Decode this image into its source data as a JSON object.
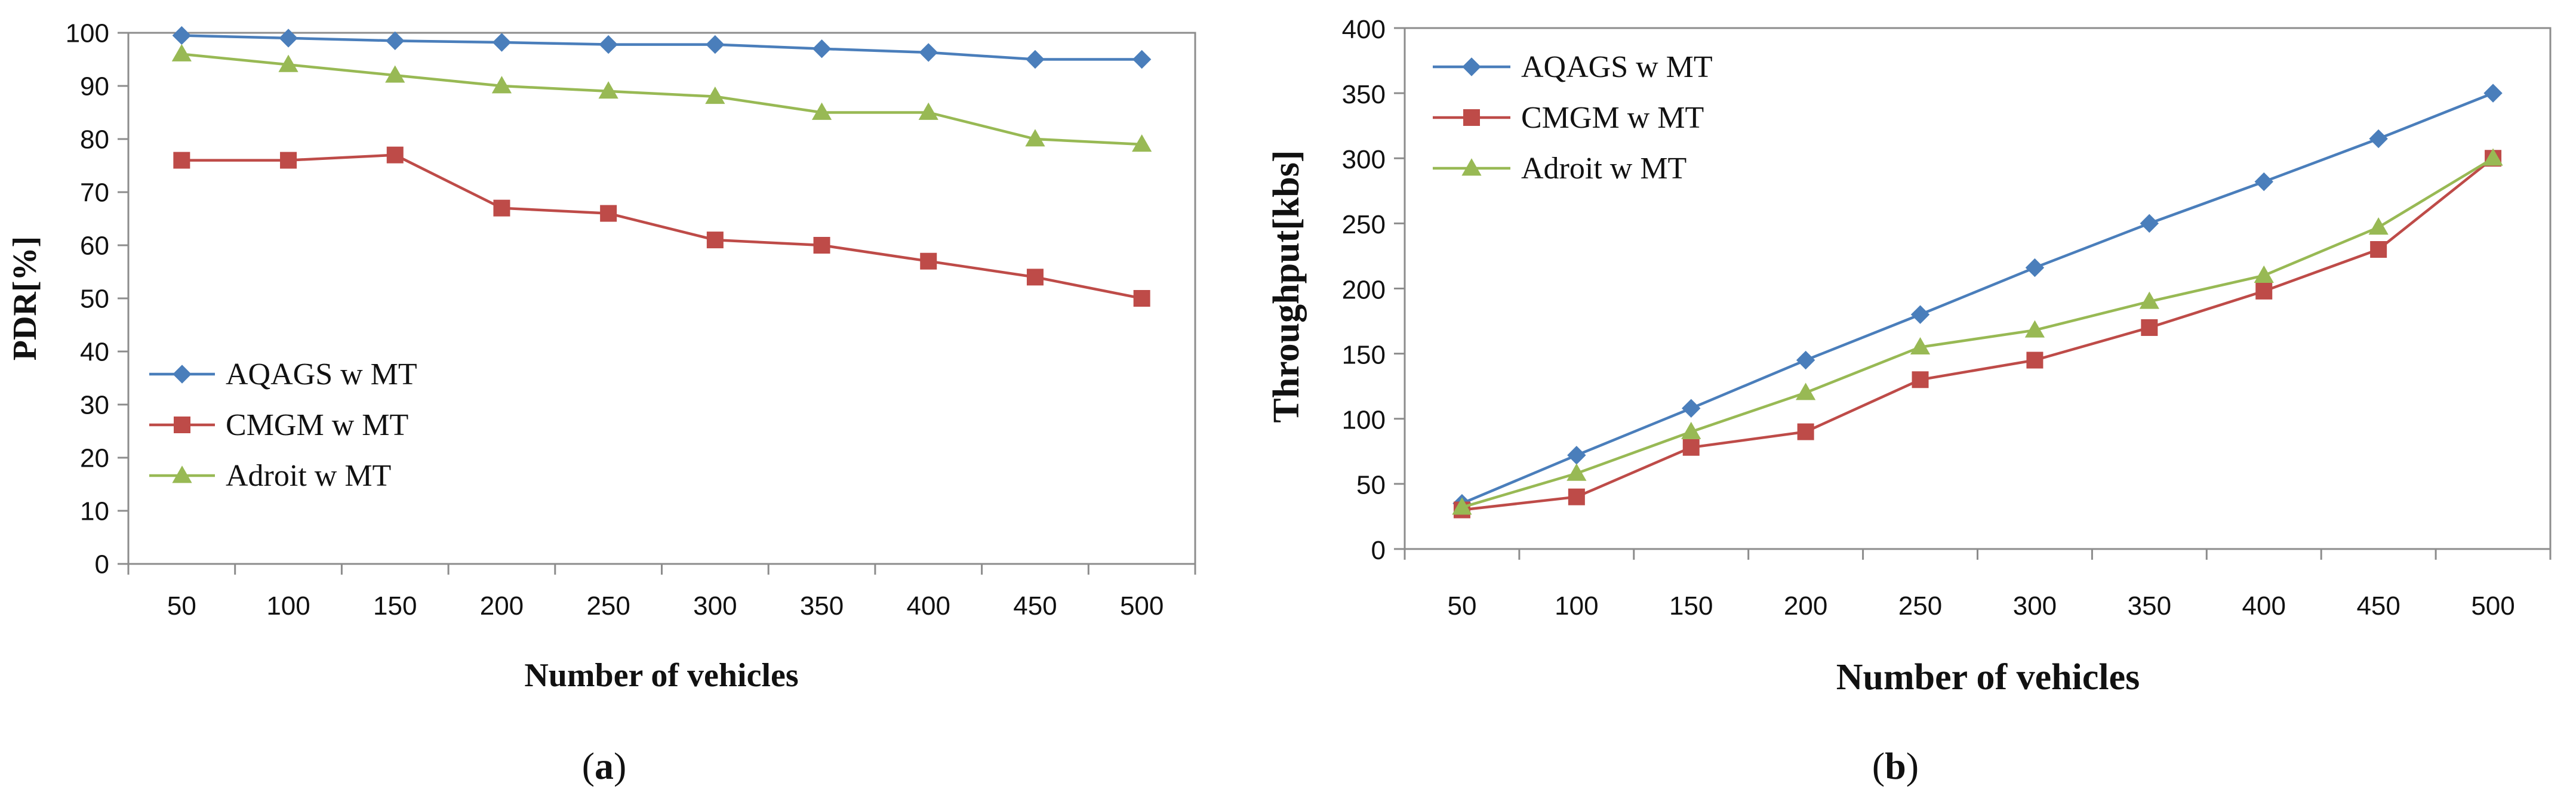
{
  "chart_data": [
    {
      "type": "line",
      "panel_label": "a",
      "xlabel": "Number of vehicles",
      "ylabel": "PDR[%]",
      "categories": [
        "50",
        "100",
        "150",
        "200",
        "250",
        "300",
        "350",
        "400",
        "450",
        "500"
      ],
      "ylim": [
        0,
        100
      ],
      "yticks": [
        "0",
        "10",
        "20",
        "30",
        "40",
        "50",
        "60",
        "70",
        "80",
        "90",
        "100"
      ],
      "grid": false,
      "legend_position": "bottom-left",
      "series": [
        {
          "name": "AQAGS w MT",
          "color": "#4a7ebb",
          "marker": "diamond",
          "values": [
            99.5,
            99,
            98.5,
            98.2,
            97.8,
            97.8,
            97,
            96.3,
            95,
            95
          ]
        },
        {
          "name": "CMGM w MT",
          "color": "#be4b48",
          "marker": "square",
          "values": [
            76,
            76,
            77,
            67,
            66,
            61,
            60,
            57,
            54,
            50
          ]
        },
        {
          "name": "Adroit w MT",
          "color": "#98b954",
          "marker": "triangle",
          "values": [
            96,
            94,
            92,
            90,
            89,
            88,
            85,
            85,
            80,
            79
          ]
        }
      ]
    },
    {
      "type": "line",
      "panel_label": "b",
      "xlabel": "Number of vehicles",
      "ylabel": "Throughput[kbs]",
      "categories": [
        "50",
        "100",
        "150",
        "200",
        "250",
        "300",
        "350",
        "400",
        "450",
        "500"
      ],
      "ylim": [
        0,
        400
      ],
      "yticks": [
        "0",
        "50",
        "100",
        "150",
        "200",
        "250",
        "300",
        "350",
        "400"
      ],
      "grid": false,
      "legend_position": "top-left",
      "series": [
        {
          "name": "AQAGS w MT",
          "color": "#4a7ebb",
          "marker": "diamond",
          "values": [
            35,
            72,
            108,
            145,
            180,
            216,
            250,
            282,
            315,
            350
          ]
        },
        {
          "name": "CMGM w MT",
          "color": "#be4b48",
          "marker": "square",
          "values": [
            30,
            40,
            78,
            90,
            130,
            145,
            170,
            198,
            230,
            300
          ]
        },
        {
          "name": "Adroit w MT",
          "color": "#98b954",
          "marker": "triangle",
          "values": [
            32,
            58,
            90,
            120,
            155,
            168,
            190,
            210,
            247,
            300
          ]
        }
      ]
    }
  ]
}
